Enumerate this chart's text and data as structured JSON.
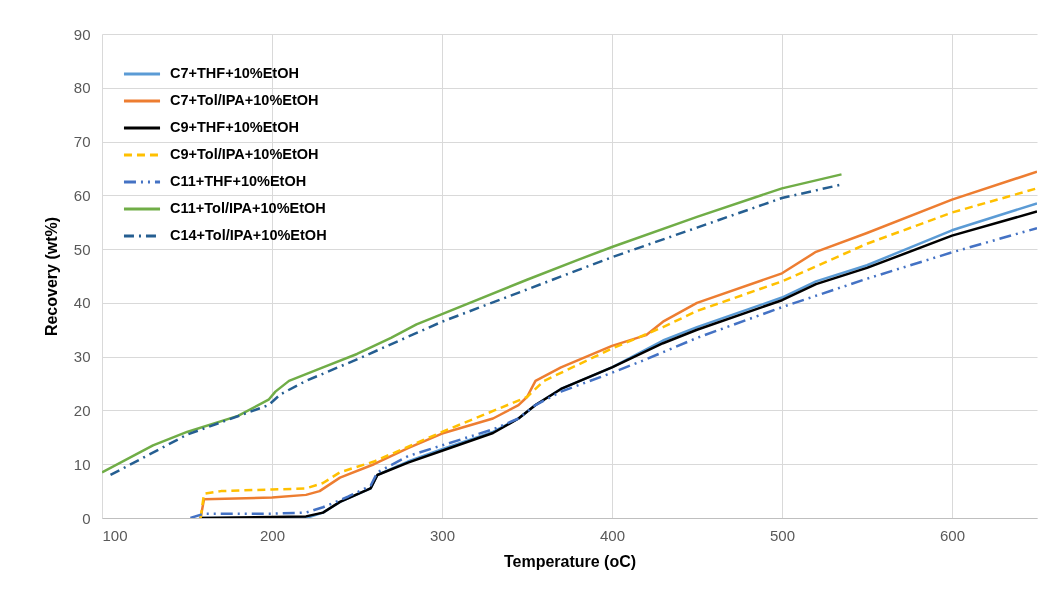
{
  "chart_data": {
    "type": "line",
    "xlabel": "Temperature (oC)",
    "ylabel": "Recovery (wt%)",
    "xlim": [
      100,
      650
    ],
    "xticks": [
      100,
      200,
      300,
      400,
      500,
      600
    ],
    "ylim": [
      0,
      90
    ],
    "yticks": [
      0,
      10,
      20,
      30,
      40,
      50,
      60,
      70,
      80,
      90
    ],
    "grid": true,
    "legend": "top left",
    "marker": "none",
    "series": [
      {
        "name": "C7+THF+10%EtOH",
        "color": "#5b9bd5",
        "line_style": "solid",
        "x": [
          157,
          220,
          230,
          240,
          258,
          262,
          280,
          300,
          330,
          345,
          355,
          370,
          400,
          430,
          450,
          500,
          520,
          550,
          600,
          650
        ],
        "values": [
          0,
          0,
          1,
          3,
          5.5,
          8,
          10.5,
          12.8,
          16,
          18.5,
          21,
          24,
          28,
          33,
          35.5,
          41,
          44,
          47,
          53.5,
          58.5
        ]
      },
      {
        "name": "C7+Tol/IPA+10%EtOH",
        "color": "#ed7d31",
        "line_style": "solid",
        "x": [
          158,
          160,
          200,
          220,
          228,
          240,
          260,
          280,
          300,
          330,
          345,
          350,
          355,
          370,
          400,
          420,
          430,
          450,
          500,
          520,
          550,
          600,
          650
        ],
        "values": [
          0,
          3.5,
          3.8,
          4.3,
          5,
          7.5,
          10,
          13,
          15.7,
          18.5,
          21,
          22.5,
          25.5,
          28,
          32,
          34,
          36.5,
          40,
          45.5,
          49.5,
          53,
          59.2,
          64.4
        ]
      },
      {
        "name": "C9+THF+10%EtOH",
        "color": "#000000",
        "line_style": "solid",
        "x": [
          158,
          220,
          230,
          240,
          258,
          262,
          280,
          300,
          330,
          345,
          355,
          370,
          400,
          430,
          450,
          500,
          520,
          550,
          600,
          650
        ],
        "values": [
          0,
          0.3,
          1,
          3,
          5.5,
          8,
          10.3,
          12.5,
          15.8,
          18.5,
          21,
          24,
          28,
          32.5,
          35,
          40.5,
          43.5,
          46.5,
          52.5,
          57
        ]
      },
      {
        "name": "C9+Tol/IPA+10%EtOH",
        "color": "#ffc000",
        "line_style": "dashed",
        "x": [
          158,
          160,
          170,
          200,
          220,
          230,
          240,
          260,
          300,
          350,
          360,
          400,
          430,
          450,
          500,
          525,
          550,
          600,
          650
        ],
        "values": [
          0,
          4.5,
          5,
          5.3,
          5.5,
          6.5,
          8.5,
          10.5,
          16,
          22.5,
          25.5,
          31.5,
          35.5,
          38.5,
          44,
          47.5,
          51,
          56.8,
          61.3
        ]
      },
      {
        "name": "C11+THF+10%EtOH",
        "color": "#4472c4",
        "line_style": "dashdotdot",
        "x": [
          152,
          160,
          200,
          220,
          230,
          245,
          258,
          262,
          280,
          300,
          330,
          345,
          355,
          370,
          400,
          420,
          450,
          500,
          550,
          600,
          650
        ],
        "values": [
          0,
          0.8,
          0.8,
          1,
          2,
          4,
          6,
          8.5,
          11.5,
          13.5,
          16.5,
          18.5,
          21,
          23.5,
          27,
          29.5,
          33.5,
          39.2,
          44.5,
          49.4,
          53.9
        ]
      },
      {
        "name": "C11+Tol/IPA+10%EtOH",
        "color": "#70ad47",
        "line_style": "solid",
        "x": [
          100,
          130,
          150,
          180,
          198,
          202,
          210,
          230,
          250,
          270,
          285,
          300,
          350,
          380,
          400,
          450,
          500,
          535
        ],
        "values": [
          8.5,
          13.5,
          16,
          19,
          22,
          23.5,
          25.5,
          28,
          30.5,
          33.5,
          36,
          37.9,
          44.3,
          48,
          50.4,
          56,
          61.3,
          63.9
        ]
      },
      {
        "name": "C14+Tol/IPA+10%EtOH",
        "color": "#255e91",
        "line_style": "dashdot",
        "x": [
          105,
          150,
          198,
          205,
          220,
          250,
          300,
          350,
          400,
          450,
          500,
          535
        ],
        "values": [
          8,
          15.5,
          21,
          23,
          25.5,
          29.5,
          36.5,
          42.5,
          48.5,
          54,
          59.5,
          62
        ]
      }
    ]
  }
}
